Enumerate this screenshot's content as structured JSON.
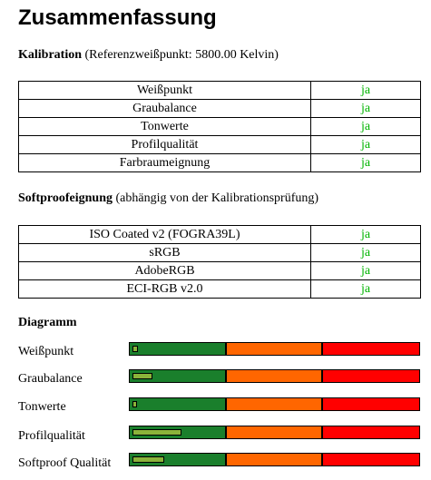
{
  "title": "Zusammenfassung",
  "calibration": {
    "heading": "Kalibration",
    "subtitle": "(Referenzweißpunkt: 5800.00 Kelvin)",
    "rows": [
      {
        "name": "Weißpunkt",
        "value": "ja"
      },
      {
        "name": "Graubalance",
        "value": "ja"
      },
      {
        "name": "Tonwerte",
        "value": "ja"
      },
      {
        "name": "Profilqualität",
        "value": "ja"
      },
      {
        "name": "Farbraumeignung",
        "value": "ja"
      }
    ]
  },
  "softproof": {
    "heading": "Softproofeignung",
    "subtitle": "(abhängig von der Kalibrationsprüfung)",
    "rows": [
      {
        "name": "ISO Coated v2 (FOGRA39L)",
        "value": "ja"
      },
      {
        "name": "sRGB",
        "value": "ja"
      },
      {
        "name": "AdobeRGB",
        "value": "ja"
      },
      {
        "name": "ECI-RGB v2.0",
        "value": "ja"
      }
    ]
  },
  "diagram": {
    "heading": "Diagramm",
    "colors": {
      "green": "#1a7f2c",
      "orange": "#ff6600",
      "red": "#ff0000",
      "level": "#8bb33a",
      "value_text": "#00b400"
    },
    "rows": [
      {
        "label": "Weißpunkt",
        "level_fraction": 0.02
      },
      {
        "label": "Graubalance",
        "level_fraction": 0.07
      },
      {
        "label": "Tonwerte",
        "level_fraction": 0.0
      },
      {
        "label": "Profilqualität",
        "level_fraction": 0.17
      },
      {
        "label": "Softproof Qualität",
        "level_fraction": 0.11
      }
    ]
  }
}
